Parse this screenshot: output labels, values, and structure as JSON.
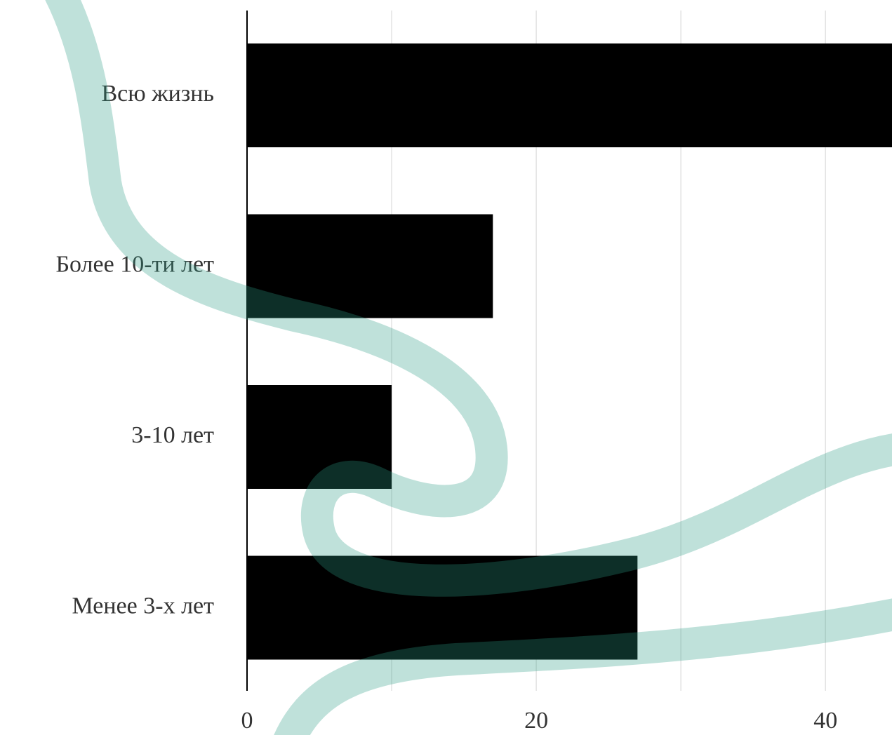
{
  "chart_data": {
    "type": "barh",
    "categories": [
      "Всю жизнь",
      "Более 10-ти лет",
      "3-10 лет",
      "Менее 3-х лет"
    ],
    "values": [
      46,
      17,
      10,
      27
    ],
    "color": "#000000",
    "xlim": [
      0,
      44.6
    ],
    "xticks": [
      0,
      20,
      40
    ],
    "x_minor_grid": [
      10,
      30
    ],
    "grid": true
  }
}
